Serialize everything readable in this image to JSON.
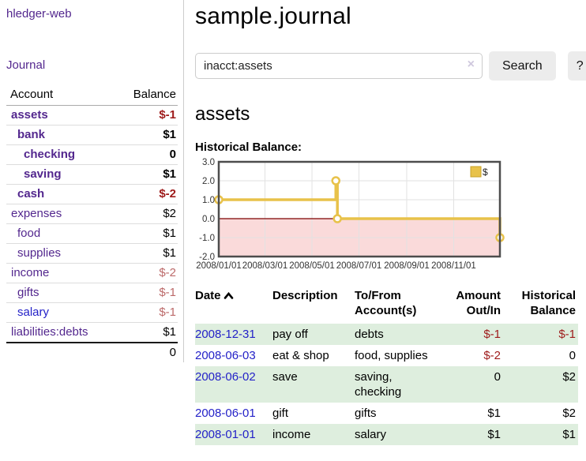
{
  "app": {
    "title": "hledger-web",
    "nav_journal": "Journal"
  },
  "sidebar": {
    "columns": {
      "account": "Account",
      "balance": "Balance"
    },
    "accounts": [
      {
        "label": "assets",
        "depth": 0,
        "bold": true,
        "balance": "$-1",
        "balance_style": "neg-strong"
      },
      {
        "label": "bank",
        "depth": 1,
        "bold": true,
        "balance": "$1",
        "balance_style": "normal"
      },
      {
        "label": "checking",
        "depth": 2,
        "bold": true,
        "balance": "0",
        "balance_style": "normal"
      },
      {
        "label": "saving",
        "depth": 2,
        "bold": true,
        "balance": "$1",
        "balance_style": "normal"
      },
      {
        "label": "cash",
        "depth": 1,
        "bold": true,
        "balance": "$-2",
        "balance_style": "neg-strong"
      },
      {
        "label": "expenses",
        "depth": 0,
        "bold": false,
        "balance": "$2",
        "balance_style": "normal"
      },
      {
        "label": "food",
        "depth": 1,
        "bold": false,
        "balance": "$1",
        "balance_style": "normal"
      },
      {
        "label": "supplies",
        "depth": 1,
        "bold": false,
        "balance": "$1",
        "balance_style": "normal"
      },
      {
        "label": "income",
        "depth": 0,
        "bold": false,
        "balance": "$-2",
        "balance_style": "neg-muted"
      },
      {
        "label": "gifts",
        "depth": 1,
        "bold": false,
        "balance": "$-1",
        "balance_style": "neg-muted"
      },
      {
        "label": "salary",
        "depth": 1,
        "bold": false,
        "balance": "$-1",
        "balance_style": "neg-muted",
        "link_style": "blue"
      },
      {
        "label": "liabilities:debts",
        "depth": 0,
        "bold": false,
        "balance": "$1",
        "balance_style": "normal"
      }
    ],
    "total": "0"
  },
  "header": {
    "title": "sample.journal"
  },
  "search": {
    "value": "inacct:assets",
    "clear_icon": "×",
    "button": "Search",
    "help_button": "?"
  },
  "account_page": {
    "title": "assets",
    "chart_label": "Historical Balance:"
  },
  "chart_data": {
    "type": "line",
    "title": "Historical Balance",
    "step": "after",
    "series": [
      {
        "name": "$",
        "points": [
          {
            "date": "2008-01-01",
            "value": 1
          },
          {
            "date": "2008-06-01",
            "value": 2
          },
          {
            "date": "2008-06-03",
            "value": 0
          },
          {
            "date": "2008-12-31",
            "value": -1
          }
        ]
      }
    ],
    "x_range": [
      "2008-01-01",
      "2008-12-31"
    ],
    "x_ticks": [
      "2008/01/01",
      "2008/03/01",
      "2008/05/01",
      "2008/07/01",
      "2008/09/01",
      "2008/11/01"
    ],
    "y_ticks": [
      "3.0",
      "2.0",
      "1.0",
      "0.0",
      "-1.0",
      "-2.0"
    ],
    "ylim": [
      -2,
      3
    ],
    "legend": {
      "label": "$",
      "position": "top-right"
    },
    "colors": {
      "line": "#e8c24a",
      "line_border": "#c9a227",
      "marker_fill": "#ffffff",
      "negative_region": "#fadada",
      "zero_line": "#7d0000",
      "grid": "#e2e2e2",
      "border": "#4d4d4d",
      "tick_text": "#333333"
    }
  },
  "register": {
    "columns": [
      {
        "label": "Date",
        "sort": "asc"
      },
      {
        "label": "Description"
      },
      {
        "label": "To/From Account(s)"
      },
      {
        "label": "Amount Out/In"
      },
      {
        "label": "Historical Balance"
      }
    ],
    "rows": [
      {
        "date": "2008-12-31",
        "description": "pay off",
        "accounts": "debts",
        "amount": "$-1",
        "balance": "$-1"
      },
      {
        "date": "2008-06-03",
        "description": "eat & shop",
        "accounts": "food, supplies",
        "amount": "$-2",
        "balance": "0"
      },
      {
        "date": "2008-06-02",
        "description": "save",
        "accounts": "saving, checking",
        "amount": "0",
        "balance": "$2"
      },
      {
        "date": "2008-06-01",
        "description": "gift",
        "accounts": "gifts",
        "amount": "$1",
        "balance": "$2"
      },
      {
        "date": "2008-01-01",
        "description": "income",
        "accounts": "salary",
        "amount": "$1",
        "balance": "$1"
      }
    ]
  }
}
